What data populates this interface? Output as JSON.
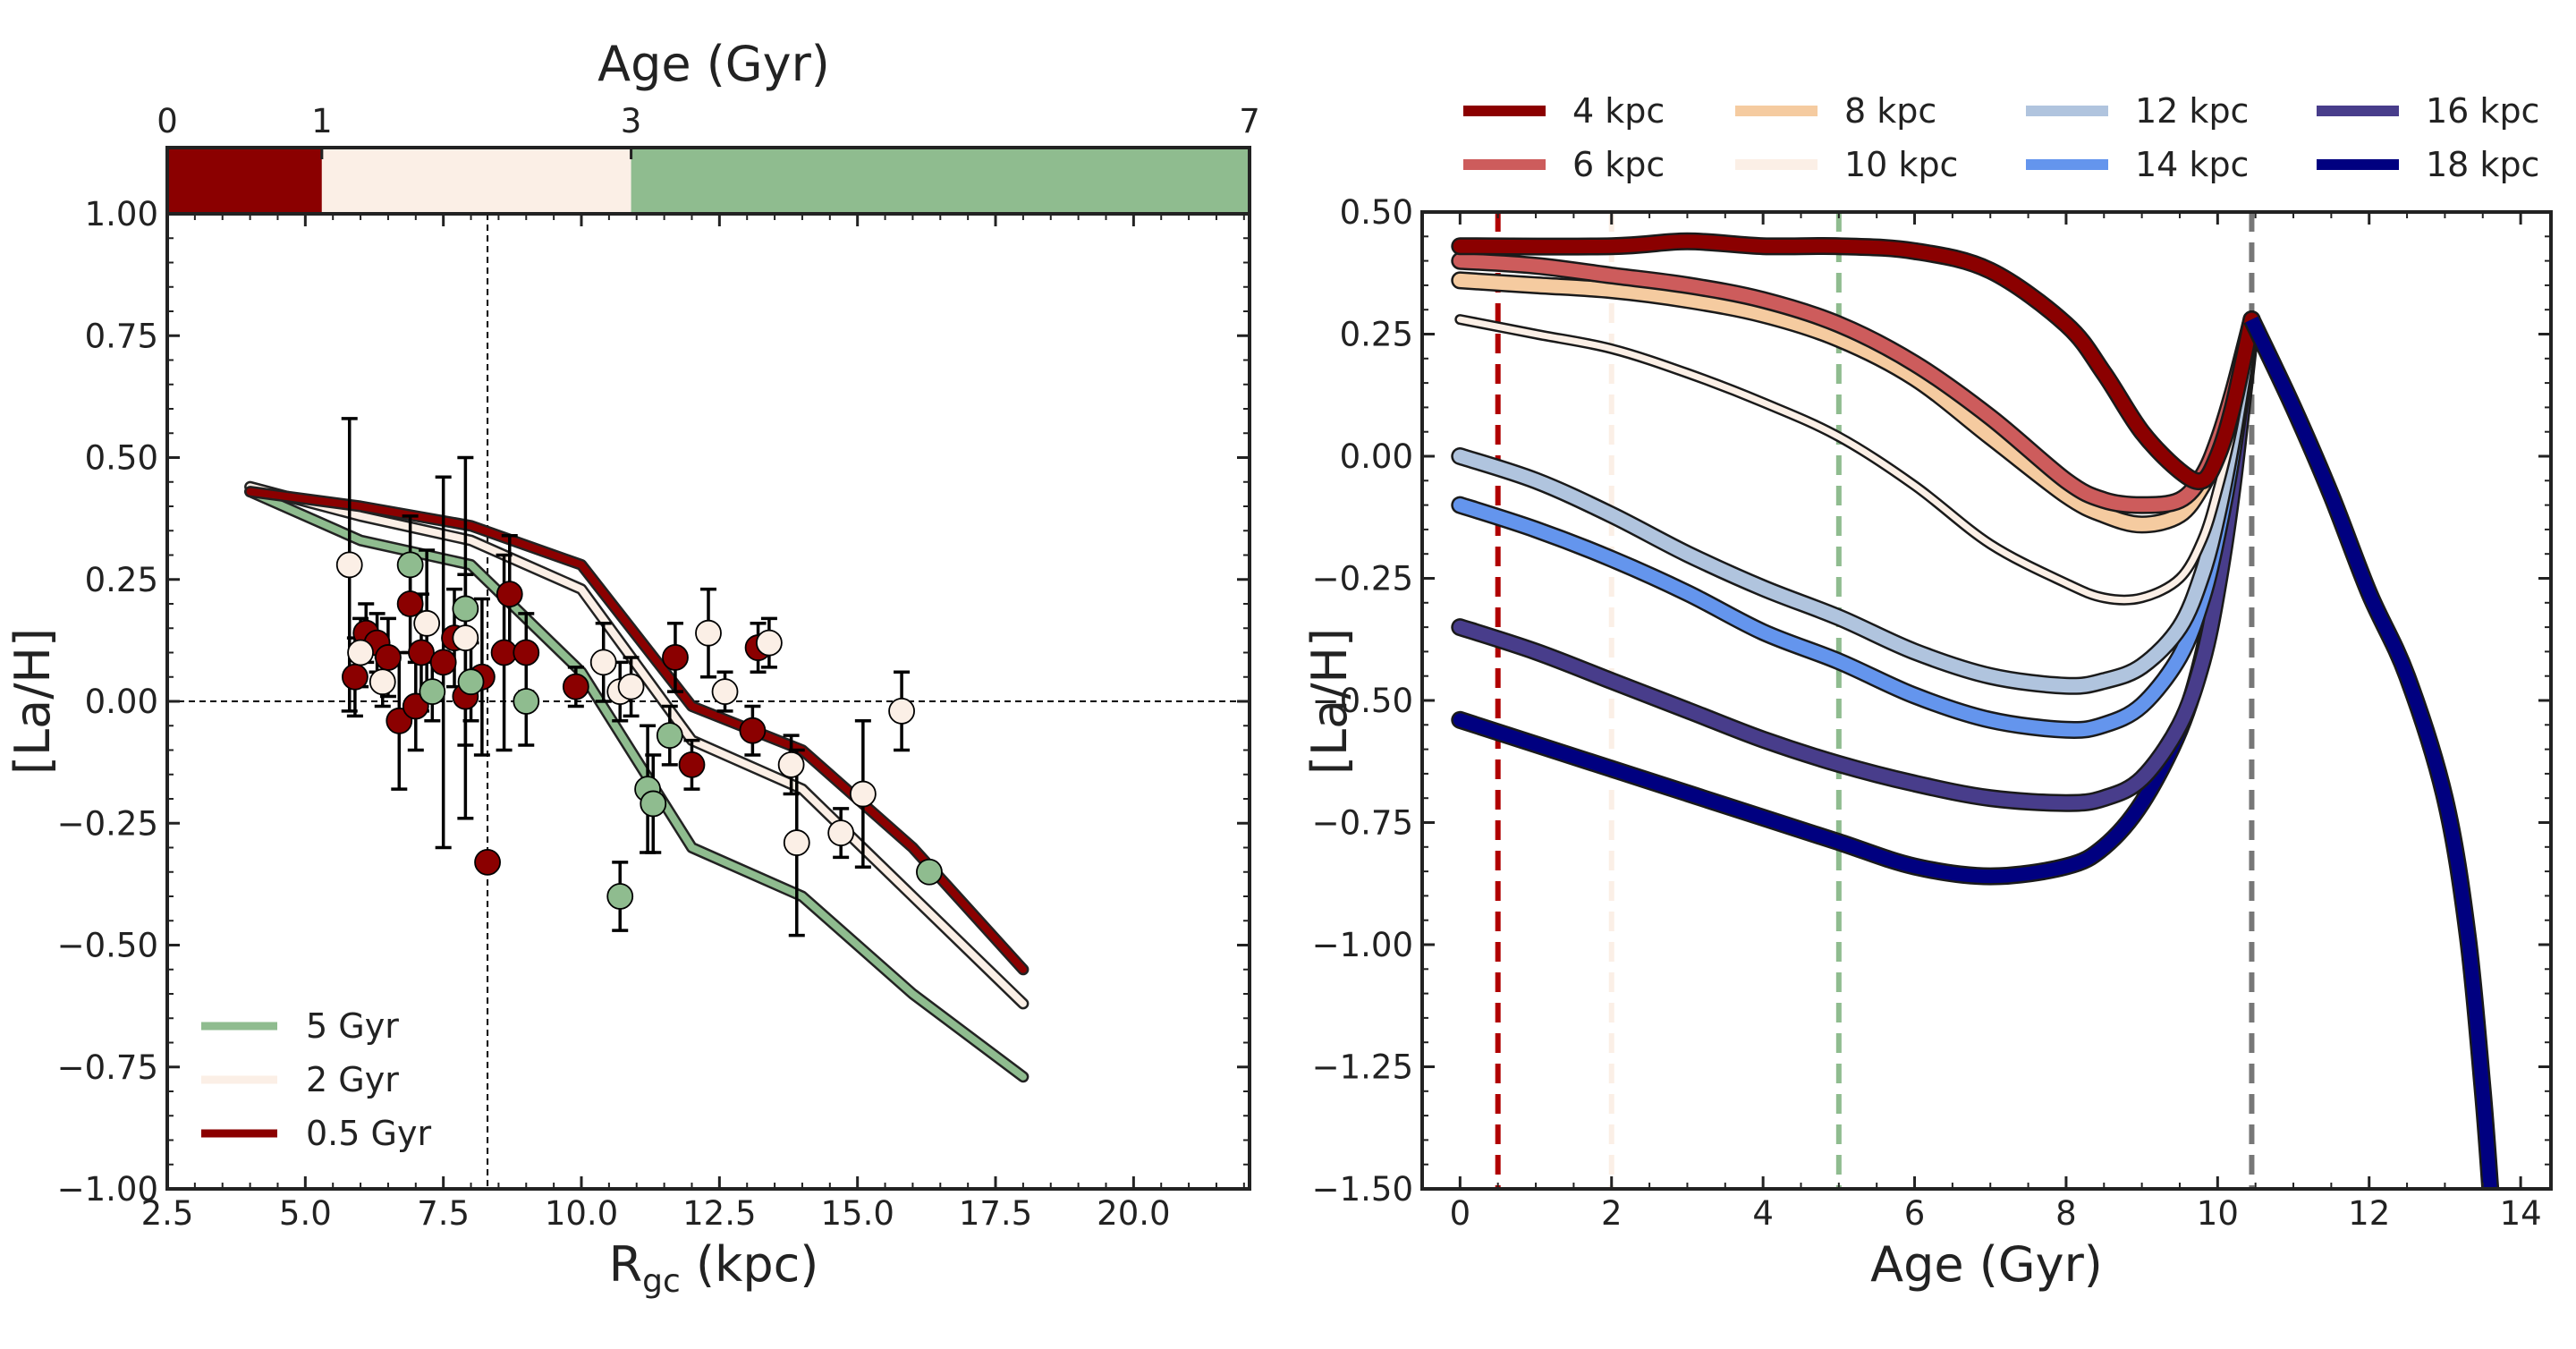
{
  "chart_data": [
    {
      "type": "scatter",
      "top_bar": {
        "label": "Age (Gyr)",
        "ticks": [
          "0",
          "1",
          "3",
          "7"
        ],
        "tick_values": [
          0,
          1,
          3,
          7
        ],
        "range": [
          0,
          7
        ],
        "segments": [
          {
            "from": 0,
            "to": 1,
            "color": "#8b0000"
          },
          {
            "from": 1,
            "to": 3,
            "color": "#fbefe6"
          },
          {
            "from": 3,
            "to": 7,
            "color": "#8fbc8f"
          }
        ]
      },
      "xlabel": "R",
      "xlabel_sub": "gc",
      "xlabel_unit": " (kpc)",
      "ylabel": "[La/H]",
      "xlim": [
        2.5,
        22.1
      ],
      "ylim": [
        -1.0,
        1.0
      ],
      "xticks": [
        "2.5",
        "5.0",
        "7.5",
        "10.0",
        "12.5",
        "15.0",
        "17.5",
        "20.0"
      ],
      "xtick_values": [
        2.5,
        5.0,
        7.5,
        10.0,
        12.5,
        15.0,
        17.5,
        20.0
      ],
      "yticks": [
        "−1.00",
        "−0.75",
        "−0.50",
        "−0.25",
        "0.00",
        "0.25",
        "0.50",
        "0.75",
        "1.00"
      ],
      "ytick_values": [
        -1.0,
        -0.75,
        -0.5,
        -0.25,
        0.0,
        0.25,
        0.5,
        0.75,
        1.0
      ],
      "ref_lines": {
        "x": 8.3,
        "y": 0.0
      },
      "series": [
        {
          "name": "5 Gyr",
          "color": "#8fbc8f",
          "x": [
            4,
            6,
            8,
            10,
            12,
            14,
            16,
            18
          ],
          "y": [
            0.43,
            0.33,
            0.28,
            0.06,
            -0.3,
            -0.4,
            -0.6,
            -0.77
          ]
        },
        {
          "name": "2 Gyr",
          "color": "#fbefe6",
          "x": [
            4,
            6,
            8,
            10,
            12,
            14,
            16,
            18
          ],
          "y": [
            0.44,
            0.38,
            0.33,
            0.23,
            -0.08,
            -0.18,
            -0.4,
            -0.62
          ]
        },
        {
          "name": "0.5 Gyr",
          "color": "#8b0000",
          "x": [
            4,
            6,
            8,
            10,
            12,
            14,
            16,
            18
          ],
          "y": [
            0.43,
            0.4,
            0.36,
            0.28,
            -0.01,
            -0.1,
            -0.3,
            -0.55
          ]
        }
      ],
      "legend": [
        "5 Gyr",
        "2 Gyr",
        "0.5 Gyr"
      ],
      "points": [
        {
          "x": 5.9,
          "y": 0.05,
          "err": 0.08,
          "group": "old"
        },
        {
          "x": 6.1,
          "y": 0.14,
          "err": 0.06,
          "group": "old"
        },
        {
          "x": 6.3,
          "y": 0.12,
          "err": 0.06,
          "group": "old"
        },
        {
          "x": 6.5,
          "y": 0.09,
          "err": 0.08,
          "group": "old"
        },
        {
          "x": 6.7,
          "y": -0.04,
          "err": 0.14,
          "group": "old"
        },
        {
          "x": 6.9,
          "y": 0.2,
          "err": 0.1,
          "group": "old"
        },
        {
          "x": 7.0,
          "y": -0.01,
          "err": 0.09,
          "group": "old"
        },
        {
          "x": 7.1,
          "y": 0.1,
          "err": 0.12,
          "group": "old"
        },
        {
          "x": 7.5,
          "y": 0.08,
          "err": 0.38,
          "group": "old"
        },
        {
          "x": 7.7,
          "y": 0.13,
          "err": 0.1,
          "group": "old"
        },
        {
          "x": 7.9,
          "y": 0.01,
          "err": 0.1,
          "group": "old"
        },
        {
          "x": 8.2,
          "y": 0.05,
          "err": 0.16,
          "group": "old"
        },
        {
          "x": 8.3,
          "y": -0.33,
          "err": 0.0,
          "group": "old"
        },
        {
          "x": 8.6,
          "y": 0.1,
          "err": 0.2,
          "group": "old"
        },
        {
          "x": 8.7,
          "y": 0.22,
          "err": 0.12,
          "group": "old"
        },
        {
          "x": 9.0,
          "y": 0.1,
          "err": 0.08,
          "group": "old"
        },
        {
          "x": 9.9,
          "y": 0.03,
          "err": 0.04,
          "group": "old"
        },
        {
          "x": 11.7,
          "y": 0.09,
          "err": 0.07,
          "group": "old"
        },
        {
          "x": 12.0,
          "y": -0.13,
          "err": 0.05,
          "group": "old"
        },
        {
          "x": 13.1,
          "y": -0.06,
          "err": 0.05,
          "group": "old"
        },
        {
          "x": 13.2,
          "y": 0.11,
          "err": 0.05,
          "group": "old"
        },
        {
          "x": 5.8,
          "y": 0.28,
          "err": 0.3,
          "group": "mid"
        },
        {
          "x": 6.0,
          "y": 0.1,
          "err": 0.07,
          "group": "mid"
        },
        {
          "x": 6.4,
          "y": 0.04,
          "err": 0.05,
          "group": "mid"
        },
        {
          "x": 7.2,
          "y": 0.16,
          "err": 0.15,
          "group": "mid"
        },
        {
          "x": 7.9,
          "y": 0.13,
          "err": 0.37,
          "group": "mid"
        },
        {
          "x": 10.4,
          "y": 0.08,
          "err": 0.08,
          "group": "mid"
        },
        {
          "x": 10.7,
          "y": 0.02,
          "err": 0.06,
          "group": "mid"
        },
        {
          "x": 10.9,
          "y": 0.03,
          "err": 0.06,
          "group": "mid"
        },
        {
          "x": 12.3,
          "y": 0.14,
          "err": 0.09,
          "group": "mid"
        },
        {
          "x": 12.6,
          "y": 0.02,
          "err": 0.04,
          "group": "mid"
        },
        {
          "x": 13.4,
          "y": 0.12,
          "err": 0.05,
          "group": "mid"
        },
        {
          "x": 13.8,
          "y": -0.13,
          "err": 0.06,
          "group": "mid"
        },
        {
          "x": 13.9,
          "y": -0.29,
          "err": 0.19,
          "group": "mid"
        },
        {
          "x": 14.7,
          "y": -0.27,
          "err": 0.05,
          "group": "mid"
        },
        {
          "x": 15.1,
          "y": -0.19,
          "err": 0.15,
          "group": "mid"
        },
        {
          "x": 15.8,
          "y": -0.02,
          "err": 0.08,
          "group": "mid"
        },
        {
          "x": 6.9,
          "y": 0.28,
          "err": 0.1,
          "group": "young"
        },
        {
          "x": 7.3,
          "y": 0.02,
          "err": 0.06,
          "group": "young"
        },
        {
          "x": 7.9,
          "y": 0.19,
          "err": 0.07,
          "group": "young"
        },
        {
          "x": 8.0,
          "y": 0.04,
          "err": 0.08,
          "group": "young"
        },
        {
          "x": 9.0,
          "y": 0.0,
          "err": 0.09,
          "group": "young"
        },
        {
          "x": 10.7,
          "y": -0.4,
          "err": 0.07,
          "group": "young"
        },
        {
          "x": 11.2,
          "y": -0.18,
          "err": 0.13,
          "group": "young"
        },
        {
          "x": 11.3,
          "y": -0.21,
          "err": 0.1,
          "group": "young"
        },
        {
          "x": 11.6,
          "y": -0.07,
          "err": 0.06,
          "group": "young"
        },
        {
          "x": 16.3,
          "y": -0.35,
          "err": 0.0,
          "group": "young"
        }
      ]
    },
    {
      "type": "line",
      "xlabel": "Age (Gyr)",
      "ylabel": "[La/H]",
      "xlim": [
        -0.5,
        14.4
      ],
      "ylim": [
        -1.5,
        0.5
      ],
      "xticks": [
        "0",
        "2",
        "4",
        "6",
        "8",
        "10",
        "12",
        "14"
      ],
      "xtick_values": [
        0,
        2,
        4,
        6,
        8,
        10,
        12,
        14
      ],
      "yticks": [
        "−1.50",
        "−1.25",
        "−1.00",
        "−0.75",
        "−0.50",
        "−0.25",
        "0.00",
        "0.25",
        "0.50"
      ],
      "ytick_values": [
        -1.5,
        -1.25,
        -1.0,
        -0.75,
        -0.5,
        -0.25,
        0.0,
        0.25,
        0.5
      ],
      "vlines": [
        {
          "x": 0.5,
          "color": "#b00000"
        },
        {
          "x": 2.0,
          "color": "#fbefe6"
        },
        {
          "x": 5.0,
          "color": "#8fbc8f"
        },
        {
          "x": 10.45,
          "color": "#777777"
        }
      ],
      "tail": {
        "x": [
          10.45,
          11,
          11.5,
          12,
          12.5,
          13,
          13.3,
          13.5,
          13.6
        ],
        "y": [
          0.28,
          0.1,
          -0.08,
          -0.28,
          -0.45,
          -0.7,
          -0.98,
          -1.3,
          -1.5
        ]
      },
      "series": [
        {
          "name": "4 kpc",
          "color": "#8b0000",
          "width": 15,
          "x": [
            0,
            2,
            3,
            4,
            5,
            6,
            7,
            8,
            8.5,
            9,
            9.5,
            9.8,
            10.0,
            10.2,
            10.45
          ],
          "y": [
            0.43,
            0.43,
            0.44,
            0.43,
            0.43,
            0.42,
            0.38,
            0.27,
            0.17,
            0.05,
            -0.03,
            -0.05,
            0.0,
            0.1,
            0.28
          ]
        },
        {
          "name": "6 kpc",
          "color": "#cd5c5c",
          "width": 15,
          "x": [
            0,
            1,
            2,
            3,
            4,
            5,
            6,
            7,
            8,
            8.5,
            9,
            9.5,
            9.8,
            10.0,
            10.2,
            10.45
          ],
          "y": [
            0.4,
            0.39,
            0.37,
            0.35,
            0.32,
            0.27,
            0.19,
            0.08,
            -0.05,
            -0.09,
            -0.1,
            -0.09,
            -0.04,
            0.03,
            0.13,
            0.28
          ]
        },
        {
          "name": "8 kpc",
          "color": "#f5cba0",
          "width": 15,
          "x": [
            0,
            1,
            2,
            3,
            4,
            5,
            6,
            7,
            8,
            8.5,
            9,
            9.5,
            9.8,
            10.0,
            10.2,
            10.45
          ],
          "y": [
            0.36,
            0.35,
            0.34,
            0.32,
            0.29,
            0.24,
            0.16,
            0.04,
            -0.08,
            -0.12,
            -0.14,
            -0.12,
            -0.06,
            0.01,
            0.11,
            0.28
          ]
        },
        {
          "name": "10 kpc",
          "color": "#fbefe6",
          "width": 7,
          "x": [
            0,
            1,
            2,
            3,
            4,
            5,
            6,
            7,
            8,
            8.5,
            9,
            9.5,
            9.8,
            10.0,
            10.2,
            10.45
          ],
          "y": [
            0.28,
            0.25,
            0.22,
            0.17,
            0.11,
            0.04,
            -0.06,
            -0.18,
            -0.26,
            -0.29,
            -0.29,
            -0.25,
            -0.17,
            -0.07,
            0.06,
            0.28
          ]
        },
        {
          "name": "12 kpc",
          "color": "#b0c4de",
          "width": 15,
          "x": [
            0,
            1,
            2,
            3,
            4,
            5,
            6,
            7,
            8,
            8.5,
            9,
            9.5,
            9.8,
            10.0,
            10.2,
            10.45
          ],
          "y": [
            0.0,
            -0.05,
            -0.12,
            -0.2,
            -0.27,
            -0.33,
            -0.4,
            -0.45,
            -0.47,
            -0.46,
            -0.43,
            -0.35,
            -0.24,
            -0.12,
            0.04,
            0.28
          ]
        },
        {
          "name": "14 kpc",
          "color": "#6495ed",
          "width": 15,
          "x": [
            0,
            1,
            2,
            3,
            4,
            5,
            6,
            7,
            8,
            8.5,
            9,
            9.5,
            9.8,
            10.0,
            10.2,
            10.45
          ],
          "y": [
            -0.1,
            -0.15,
            -0.21,
            -0.28,
            -0.36,
            -0.42,
            -0.49,
            -0.54,
            -0.56,
            -0.55,
            -0.51,
            -0.41,
            -0.29,
            -0.16,
            0.01,
            0.28
          ]
        },
        {
          "name": "16 kpc",
          "color": "#483d8b",
          "width": 15,
          "x": [
            0,
            1,
            2,
            3,
            4,
            5,
            6,
            7,
            8,
            8.5,
            9,
            9.5,
            9.8,
            10.0,
            10.2,
            10.45
          ],
          "y": [
            -0.35,
            -0.4,
            -0.46,
            -0.52,
            -0.58,
            -0.63,
            -0.67,
            -0.7,
            -0.71,
            -0.7,
            -0.66,
            -0.55,
            -0.42,
            -0.27,
            -0.06,
            0.28
          ]
        },
        {
          "name": "18 kpc",
          "color": "#000080",
          "width": 15,
          "x": [
            0,
            1,
            2,
            3,
            4,
            5,
            6,
            7,
            8,
            8.5,
            9,
            9.5,
            9.8,
            10.0,
            10.2,
            10.45
          ],
          "y": [
            -0.54,
            -0.59,
            -0.64,
            -0.69,
            -0.74,
            -0.79,
            -0.84,
            -0.86,
            -0.84,
            -0.8,
            -0.71,
            -0.56,
            -0.41,
            -0.24,
            -0.03,
            0.28
          ]
        }
      ]
    }
  ]
}
